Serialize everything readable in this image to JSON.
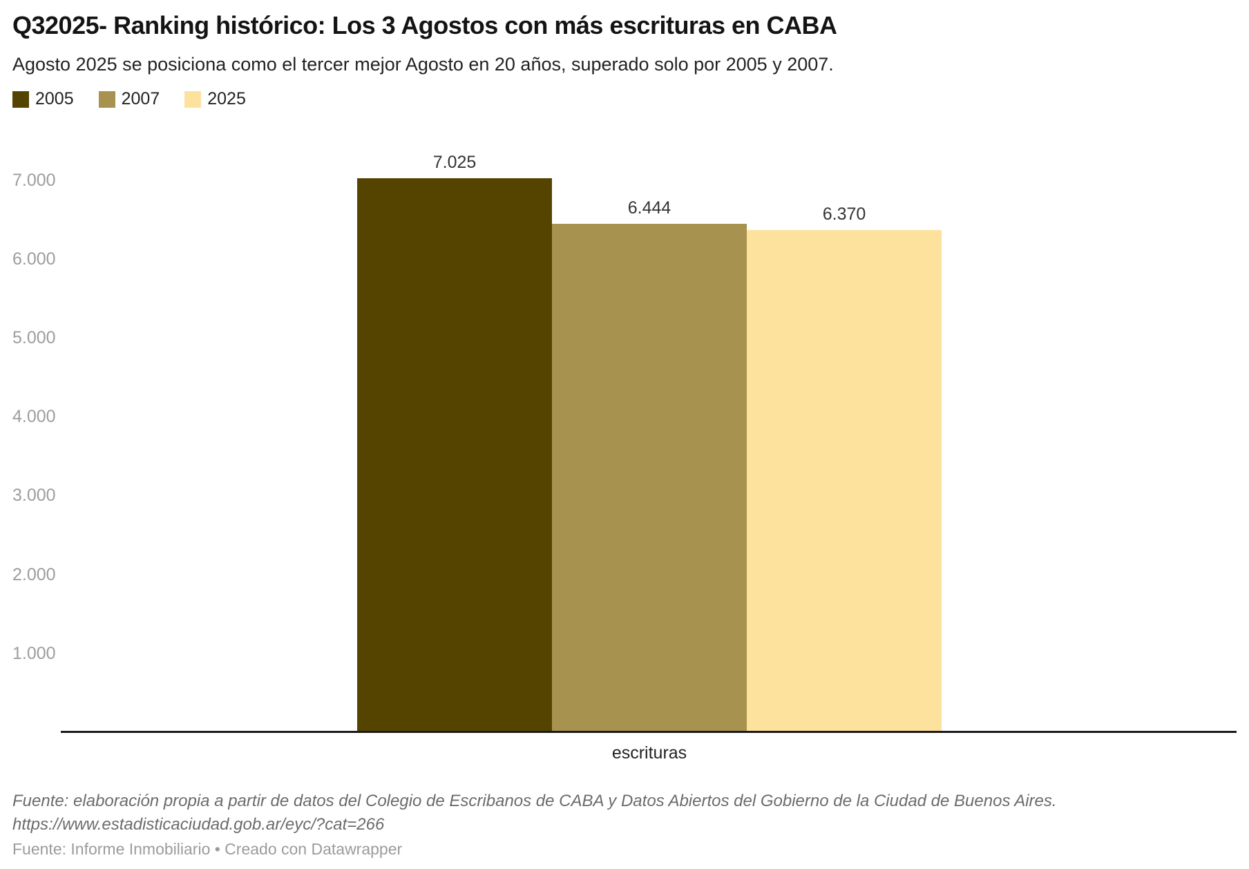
{
  "chart_data": {
    "type": "bar",
    "title": "Q32025- Ranking histórico: Los 3 Agostos con más escrituras en CABA",
    "subtitle": "Agosto 2025 se posiciona como el tercer mejor Agosto en 20 años, superado solo por 2005 y 2007.",
    "categories": [
      "escrituras"
    ],
    "xlabel": "escrituras",
    "ylabel": "",
    "series": [
      {
        "name": "2005",
        "values": [
          7025
        ],
        "value_label": "7.025",
        "color": "#554400"
      },
      {
        "name": "2007",
        "values": [
          6444
        ],
        "value_label": "6.444",
        "color": "#a8924f"
      },
      {
        "name": "2025",
        "values": [
          6370
        ],
        "value_label": "6.370",
        "color": "#fde29e"
      }
    ],
    "y_axis": {
      "range": [
        0,
        7600
      ],
      "grid": false,
      "ticks": [
        {
          "label": "7.000",
          "value": 7000
        },
        {
          "label": "6.000",
          "value": 6000
        },
        {
          "label": "5.000",
          "value": 5000
        },
        {
          "label": "4.000",
          "value": 4000
        },
        {
          "label": "3.000",
          "value": 3000
        },
        {
          "label": "2.000",
          "value": 2000
        },
        {
          "label": "1.000",
          "value": 1000
        }
      ]
    },
    "legend": {
      "position": "top-left",
      "entries": [
        "2005",
        "2007",
        "2025"
      ]
    },
    "source_note": "Fuente: elaboración propia a partir de datos del Colegio de Escribanos de CABA y Datos Abiertos del Gobierno de la Ciudad de Buenos Aires.",
    "source_url": "https://www.estadisticaciudad.gob.ar/eyc/?cat=266",
    "attribution": "Fuente: Informe Inmobiliario • Creado con Datawrapper"
  }
}
